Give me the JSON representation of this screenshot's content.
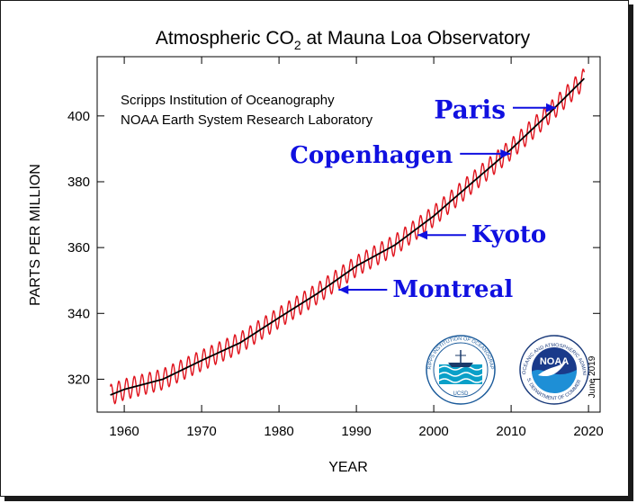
{
  "chart_data": {
    "type": "line",
    "title_main": "Atmospheric CO",
    "title_sub": "2",
    "title_rest": " at Mauna Loa Observatory",
    "xlabel": "YEAR",
    "ylabel": "PARTS PER MILLION",
    "xlim": [
      1956.5,
      2021.5
    ],
    "ylim": [
      310,
      418
    ],
    "xticks": [
      1960,
      1970,
      1980,
      1990,
      2000,
      2010,
      2020
    ],
    "yticks": [
      320,
      340,
      360,
      380,
      400
    ],
    "grid": false,
    "credits": [
      "Scripps Institution of Oceanography",
      "NOAA Earth System Research Laboratory"
    ],
    "date_note": "June 2019",
    "series": [
      {
        "role": "monthly",
        "color": "#e0141e",
        "seasonal_amplitude_ppm": 3.2,
        "x": [
          1958.2,
          1960,
          1965,
          1970,
          1975,
          1980,
          1985,
          1990,
          1995,
          2000,
          2005,
          2010,
          2015,
          2019.5
        ],
        "y": [
          315.2,
          316.9,
          320.0,
          325.7,
          331.1,
          338.7,
          346.1,
          354.4,
          360.8,
          369.6,
          379.8,
          389.9,
          401.0,
          411.5
        ]
      },
      {
        "role": "trend",
        "color": "#000000",
        "x": [
          1958.2,
          1960,
          1965,
          1970,
          1975,
          1980,
          1985,
          1990,
          1995,
          2000,
          2005,
          2010,
          2015,
          2019.5
        ],
        "y": [
          315.2,
          316.9,
          320.0,
          325.7,
          331.1,
          338.7,
          346.1,
          354.4,
          360.8,
          369.6,
          379.8,
          389.9,
          401.0,
          411.5
        ]
      }
    ],
    "annotations": [
      {
        "text": "Paris",
        "year": 2015.8,
        "ppm": 402.5,
        "color": "#1010e0"
      },
      {
        "text": "Copenhagen",
        "year": 2009.9,
        "ppm": 388.5,
        "color": "#1010e0"
      },
      {
        "text": "Kyoto",
        "year": 1997.9,
        "ppm": 363.8,
        "color": "#1010e0"
      },
      {
        "text": "Montreal",
        "year": 1987.7,
        "ppm": 347.2,
        "color": "#1010e0"
      }
    ]
  },
  "logos": [
    {
      "name": "scripps-ucsd-logo",
      "ring_text": "SCRIPPS INSTITUTION OF OCEANOGRAPHY",
      "bottom_text": "UCSD"
    },
    {
      "name": "noaa-logo",
      "ring_text": "NATIONAL OCEANIC AND ATMOSPHERIC ADMINISTRATION",
      "center_text": "NOAA",
      "bottom_text": "U.S. DEPARTMENT OF COMMERCE"
    }
  ]
}
